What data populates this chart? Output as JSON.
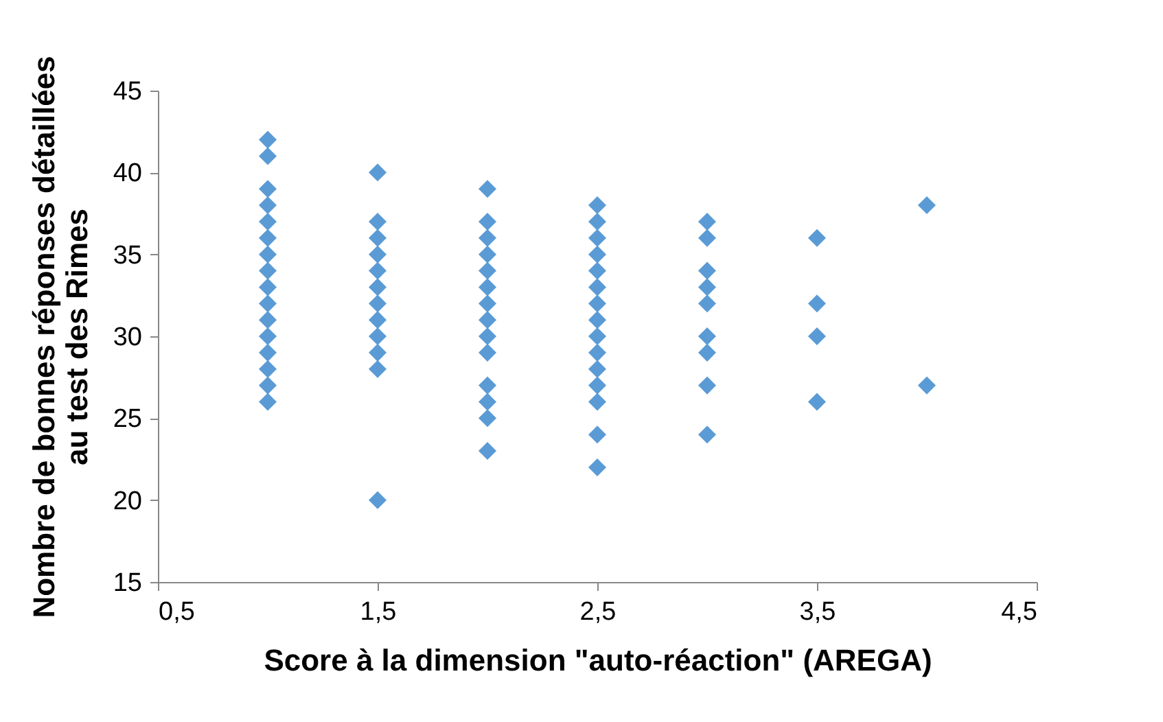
{
  "chart_data": {
    "type": "scatter",
    "xlabel": "Score à la dimension \"auto-réaction\" (AREGA)",
    "ylabel": "Nombre de bonnes réponses détaillées au test des Rimes",
    "xlim": [
      0.5,
      4.5
    ],
    "xticks": [
      {
        "value": 0.5,
        "label": "0,5"
      },
      {
        "value": 1.5,
        "label": "1,5"
      },
      {
        "value": 2.5,
        "label": "2,5"
      },
      {
        "value": 3.5,
        "label": "3,5"
      },
      {
        "value": 4.5,
        "label": "4,5"
      }
    ],
    "ylim": [
      15,
      45
    ],
    "yticks": [
      15,
      20,
      25,
      30,
      35,
      40,
      45
    ],
    "marker": "diamond",
    "grid": false,
    "legend": false,
    "series": [
      {
        "color": "#5b9bd5",
        "x": [
          1,
          1,
          1,
          1,
          1,
          1,
          1,
          1,
          1,
          1,
          1,
          1,
          1,
          1,
          1,
          1,
          1.5,
          1.5,
          1.5,
          1.5,
          1.5,
          1.5,
          1.5,
          1.5,
          1.5,
          1.5,
          1.5,
          1.5,
          2,
          2,
          2,
          2,
          2,
          2,
          2,
          2,
          2,
          2,
          2,
          2,
          2,
          2,
          2.5,
          2.5,
          2.5,
          2.5,
          2.5,
          2.5,
          2.5,
          2.5,
          2.5,
          2.5,
          2.5,
          2.5,
          2.5,
          2.5,
          2.5,
          3,
          3,
          3,
          3,
          3,
          3,
          3,
          3,
          3,
          3.5,
          3.5,
          3.5,
          3.5,
          4,
          4
        ],
        "values": [
          42,
          41,
          39,
          38,
          37,
          36,
          35,
          34,
          33,
          32,
          31,
          30,
          29,
          28,
          27,
          26,
          40,
          37,
          36,
          35,
          34,
          33,
          32,
          31,
          30,
          29,
          28,
          20,
          39,
          37,
          36,
          35,
          34,
          33,
          32,
          31,
          30,
          29,
          27,
          26,
          25,
          23,
          38,
          37,
          36,
          35,
          34,
          33,
          32,
          31,
          30,
          29,
          28,
          27,
          26,
          24,
          22,
          37,
          36,
          34,
          33,
          32,
          30,
          29,
          27,
          24,
          36,
          32,
          30,
          26,
          38,
          27
        ]
      }
    ]
  }
}
